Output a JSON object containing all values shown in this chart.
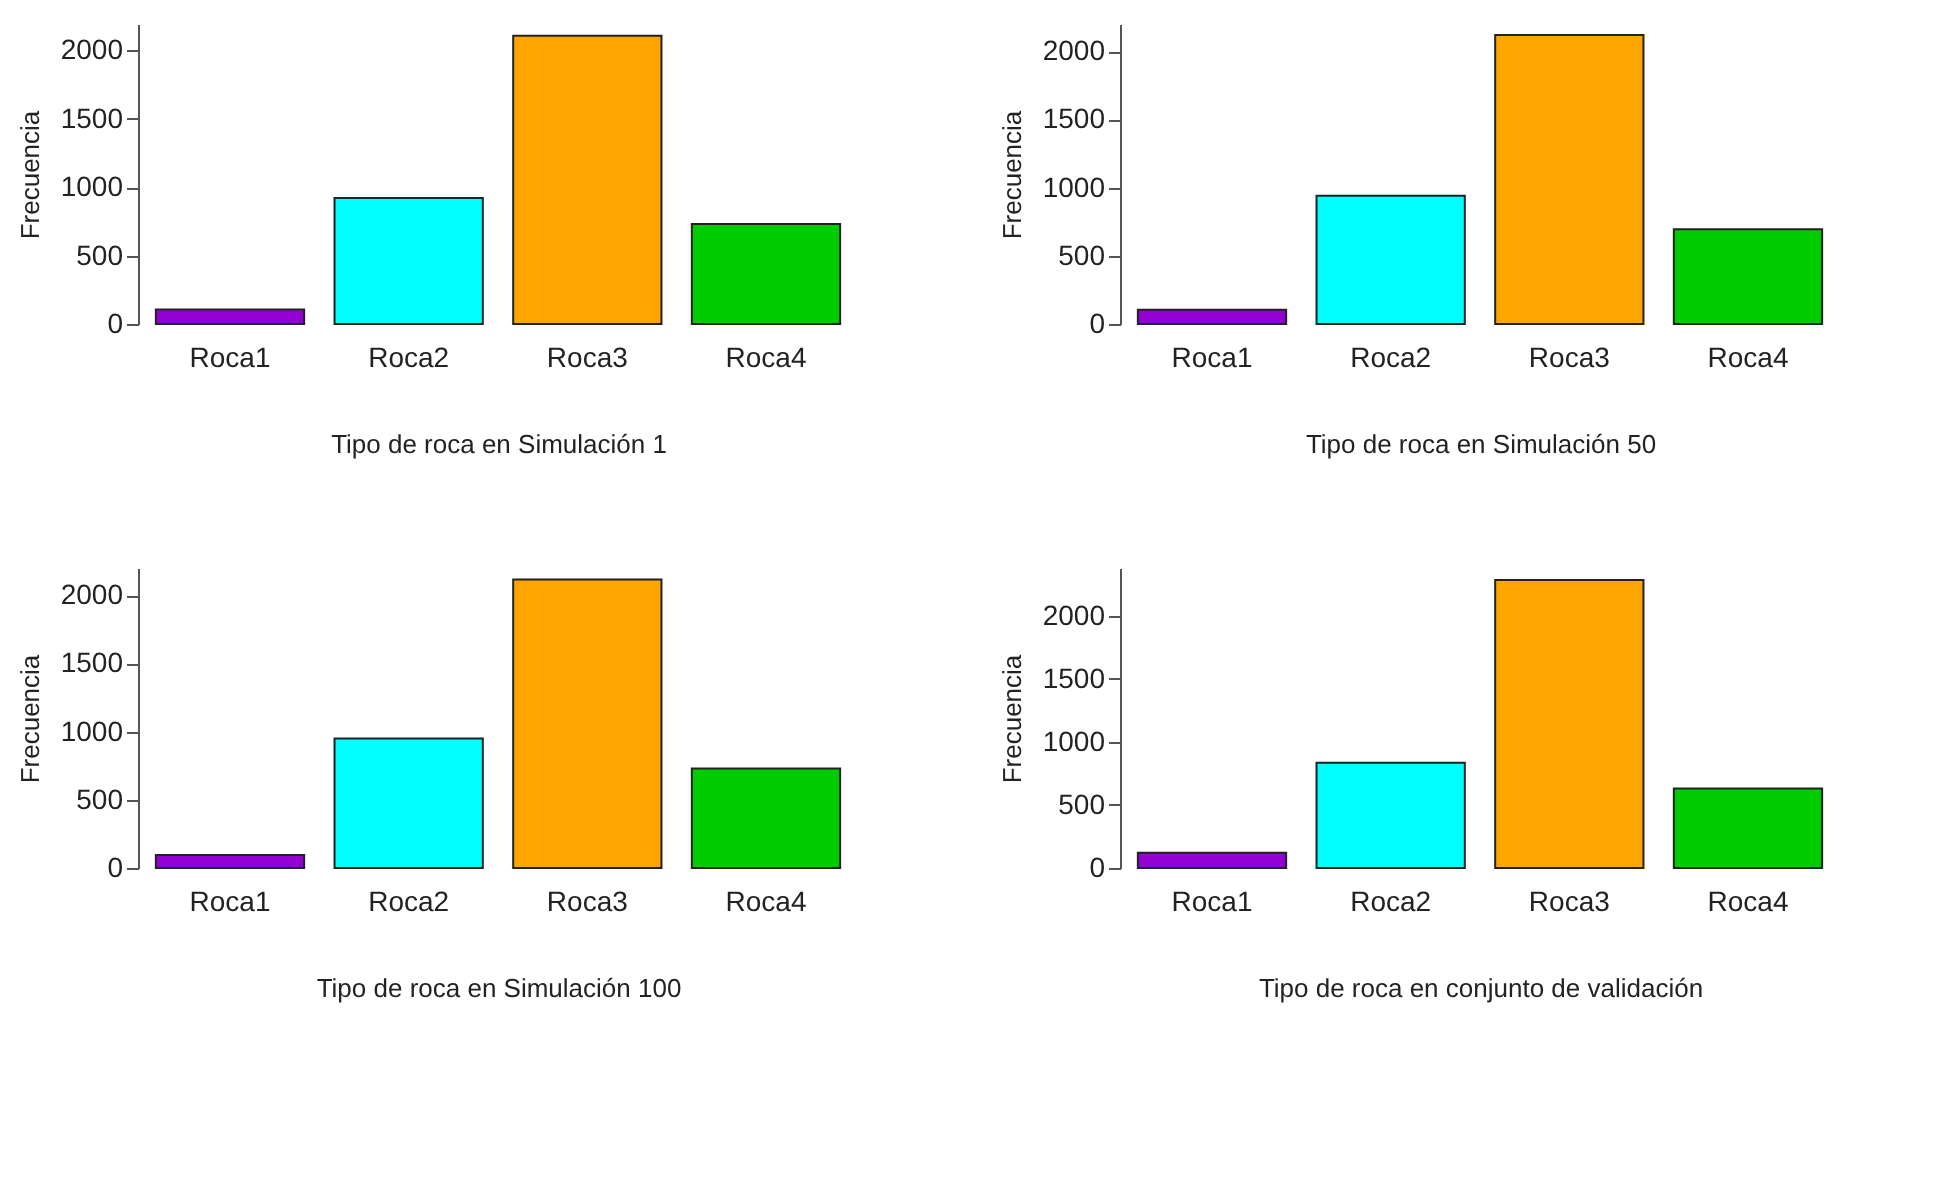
{
  "chart_data": [
    {
      "type": "bar",
      "xlabel": "Tipo de roca en Simulación 1",
      "ylabel": "Frecuencia",
      "categories": [
        "Roca1",
        "Roca2",
        "Roca3",
        "Roca4"
      ],
      "values": [
        105,
        920,
        2105,
        730
      ],
      "colors": [
        "#9400d3",
        "#00ffff",
        "#ffa500",
        "#00cd00"
      ],
      "ylim": [
        0,
        2190
      ],
      "yticks": [
        0,
        500,
        1000,
        1500,
        2000
      ]
    },
    {
      "type": "bar",
      "xlabel": "Tipo de roca en Simulación 50",
      "ylabel": "Frecuencia",
      "categories": [
        "Roca1",
        "Roca2",
        "Roca3",
        "Roca4"
      ],
      "values": [
        105,
        940,
        2120,
        695
      ],
      "colors": [
        "#9400d3",
        "#00ffff",
        "#ffa500",
        "#00cd00"
      ],
      "ylim": [
        0,
        2200
      ],
      "yticks": [
        0,
        500,
        1000,
        1500,
        2000
      ]
    },
    {
      "type": "bar",
      "xlabel": "Tipo de roca en Simulación 100",
      "ylabel": "Frecuencia",
      "categories": [
        "Roca1",
        "Roca2",
        "Roca3",
        "Roca4"
      ],
      "values": [
        95,
        950,
        2115,
        730
      ],
      "colors": [
        "#9400d3",
        "#00ffff",
        "#ffa500",
        "#00cd00"
      ],
      "ylim": [
        0,
        2200
      ],
      "yticks": [
        0,
        500,
        1000,
        1500,
        2000
      ]
    },
    {
      "type": "bar",
      "xlabel": "Tipo de roca en conjunto de validación",
      "ylabel": "Frecuencia",
      "categories": [
        "Roca1",
        "Roca2",
        "Roca3",
        "Roca4"
      ],
      "values": [
        120,
        835,
        2285,
        630
      ],
      "colors": [
        "#9400d3",
        "#00ffff",
        "#ffa500",
        "#00cd00"
      ],
      "ylim": [
        0,
        2380
      ],
      "yticks": [
        0,
        500,
        1000,
        1500,
        2000
      ]
    }
  ]
}
